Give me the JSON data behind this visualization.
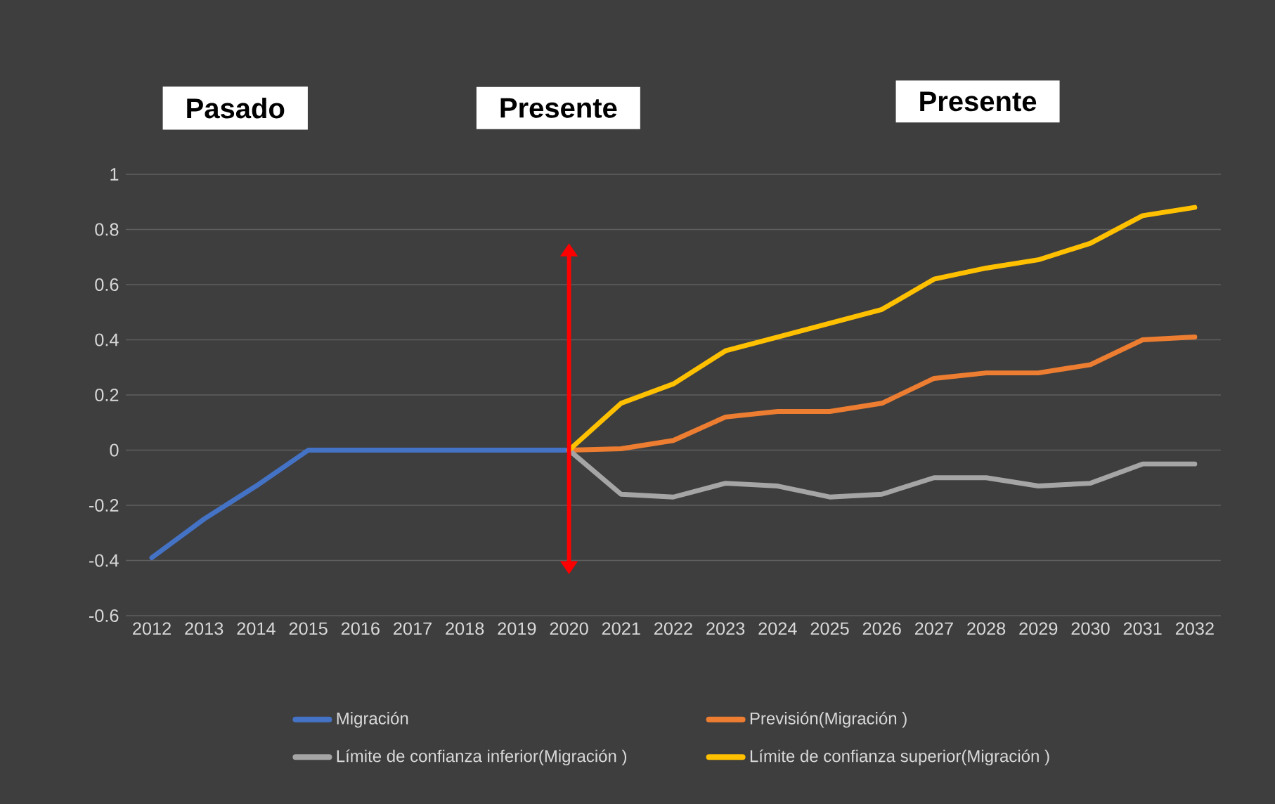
{
  "chart_data": {
    "type": "line",
    "categories": [
      "2012",
      "2013",
      "2014",
      "2015",
      "2016",
      "2017",
      "2018",
      "2019",
      "2020",
      "2021",
      "2022",
      "2023",
      "2024",
      "2025",
      "2026",
      "2027",
      "2028",
      "2029",
      "2030",
      "2031",
      "2032"
    ],
    "series": [
      {
        "name": "Migración",
        "color": "#4472c4",
        "values": [
          -0.39,
          -0.25,
          -0.13,
          0,
          0,
          0,
          0,
          0,
          0,
          null,
          null,
          null,
          null,
          null,
          null,
          null,
          null,
          null,
          null,
          null,
          null
        ]
      },
      {
        "name": "Previsión(Migración )",
        "color": "#ed7d31",
        "values": [
          null,
          null,
          null,
          null,
          null,
          null,
          null,
          null,
          0,
          0.005,
          0.035,
          0.12,
          0.14,
          0.14,
          0.17,
          0.26,
          0.28,
          0.28,
          0.31,
          0.4,
          0.41
        ]
      },
      {
        "name": "Límite de confianza inferior(Migración )",
        "color": "#a5a5a5",
        "values": [
          null,
          null,
          null,
          null,
          null,
          null,
          null,
          null,
          0,
          -0.16,
          -0.17,
          -0.12,
          -0.13,
          -0.17,
          -0.16,
          -0.1,
          -0.1,
          -0.13,
          -0.12,
          -0.05,
          -0.05
        ]
      },
      {
        "name": "Límite de confianza superior(Migración )",
        "color": "#ffc000",
        "values": [
          null,
          null,
          null,
          null,
          null,
          null,
          null,
          null,
          0,
          0.17,
          0.24,
          0.36,
          0.41,
          0.46,
          0.51,
          0.62,
          0.66,
          0.69,
          0.75,
          0.85,
          0.88
        ]
      }
    ],
    "ylim": [
      -0.6,
      1
    ],
    "yticks": [
      -0.6,
      -0.4,
      -0.2,
      0,
      0.2,
      0.4,
      0.6,
      0.8,
      1
    ],
    "grid": "y",
    "legend": "bottom",
    "marker": "none",
    "line_style": "solid",
    "ref_lines": [
      {
        "axis": "x",
        "value": "2020",
        "color": "#ff0000"
      }
    ],
    "annotations": [
      "Pasado",
      "Presente",
      "Presente"
    ]
  }
}
